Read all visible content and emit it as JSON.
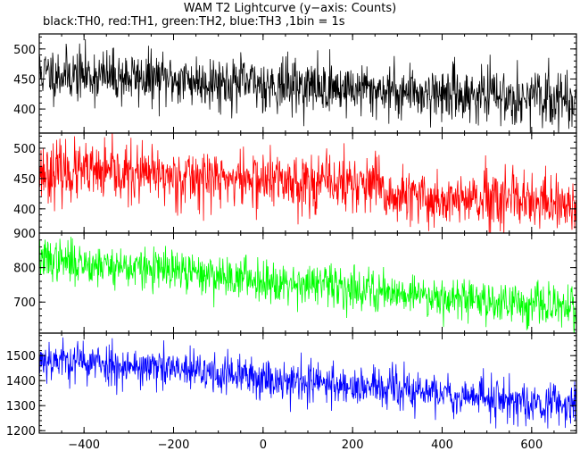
{
  "chart_data": {
    "type": "line",
    "title": "WAM T2 Lightcurve (y−axis: Counts)",
    "subtitle": "black:TH0, red:TH1, green:TH2, blue:TH3 ,1bin = 1s",
    "xlim": [
      -500,
      700
    ],
    "x_ticks": [
      -400,
      -200,
      0,
      200,
      400,
      600
    ],
    "x_tick_labels": [
      "−400",
      "−200",
      "0",
      "200",
      "400",
      "600"
    ],
    "x_step": 1,
    "grid": false,
    "panels": [
      {
        "series_name": "TH0",
        "color": "#000000",
        "ylim": [
          360,
          525
        ],
        "y_ticks": [
          400,
          450,
          500
        ],
        "trend": [
          [
            -500,
            460
          ],
          [
            700,
            415
          ]
        ],
        "noise": 22,
        "seed": 11
      },
      {
        "series_name": "TH1",
        "color": "#ff0000",
        "ylim": [
          360,
          525
        ],
        "y_ticks": [
          400,
          450,
          500
        ],
        "trend": [
          [
            -500,
            462
          ],
          [
            250,
            440
          ],
          [
            270,
            420
          ],
          [
            700,
            405
          ]
        ],
        "noise": 24,
        "seed": 23
      },
      {
        "series_name": "TH2",
        "color": "#00ff00",
        "ylim": [
          610,
          900
        ],
        "y_ticks": [
          700,
          800,
          900
        ],
        "trend": [
          [
            -500,
            825
          ],
          [
            700,
            680
          ]
        ],
        "noise": 30,
        "seed": 37
      },
      {
        "series_name": "TH3",
        "color": "#0000ff",
        "ylim": [
          1190,
          1590
        ],
        "y_ticks": [
          1200,
          1300,
          1400,
          1500
        ],
        "trend": [
          [
            -500,
            1490
          ],
          [
            700,
            1300
          ]
        ],
        "noise": 42,
        "seed": 53
      }
    ]
  }
}
